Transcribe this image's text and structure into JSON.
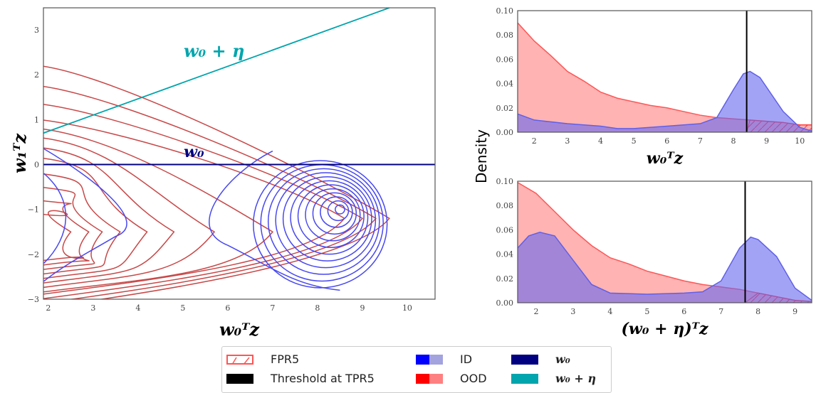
{
  "chart_data": [
    {
      "type": "contour",
      "xlabel": "w₀ᵀz",
      "ylabel": "w₁ᵀz",
      "xlim": [
        1.89,
        10.62
      ],
      "ylim": [
        -3,
        3.49
      ],
      "xticks": [
        "2",
        "3",
        "4",
        "5",
        "6",
        "7",
        "8",
        "9",
        "10"
      ],
      "yticks": [
        "−3",
        "−2",
        "−1",
        "0",
        "1",
        "2",
        "3"
      ],
      "lines": [
        {
          "name": "w₀",
          "slope": 0,
          "intercept": 0,
          "color": "#000080"
        },
        {
          "name": "w₀ + η",
          "points": [
            [
              1.89,
              0.7
            ],
            [
              9.6,
              3.49
            ]
          ],
          "color": "#00a5ad"
        }
      ],
      "id_center": [
        8.5,
        -1
      ],
      "grid": false
    },
    {
      "type": "area",
      "xlabel": "w₀ᵀz",
      "ylabel": "Density",
      "xlim": [
        1.5,
        10.36
      ],
      "ylim": [
        0,
        0.1
      ],
      "xticks": [
        "2",
        "3",
        "4",
        "5",
        "6",
        "7",
        "8",
        "9",
        "10"
      ],
      "yticks": [
        "0.00",
        "0.02",
        "0.04",
        "0.06",
        "0.08",
        "0.10"
      ],
      "threshold": 8.4,
      "series": [
        {
          "name": "OOD",
          "x": [
            1.5,
            2,
            2.5,
            3,
            3.5,
            4,
            4.5,
            5,
            5.5,
            6,
            6.5,
            7,
            7.5,
            8,
            8.5,
            9,
            9.5,
            10,
            10.36
          ],
          "y": [
            0.09,
            0.075,
            0.063,
            0.05,
            0.042,
            0.033,
            0.028,
            0.025,
            0.022,
            0.02,
            0.017,
            0.014,
            0.012,
            0.011,
            0.01,
            0.009,
            0.008,
            0.006,
            0.006
          ]
        },
        {
          "name": "ID",
          "x": [
            1.5,
            2,
            3,
            4,
            4.5,
            5,
            6,
            6.5,
            7,
            7.5,
            8,
            8.3,
            8.5,
            8.8,
            9,
            9.5,
            10,
            10.36
          ],
          "y": [
            0.015,
            0.01,
            0.007,
            0.005,
            0.003,
            0.003,
            0.005,
            0.006,
            0.007,
            0.012,
            0.035,
            0.048,
            0.05,
            0.045,
            0.037,
            0.017,
            0.004,
            0.001
          ]
        }
      ]
    },
    {
      "type": "area",
      "xlabel": "(w₀ + η)ᵀz",
      "ylabel": "Density",
      "xlim": [
        1.5,
        9.45
      ],
      "ylim": [
        0,
        0.1
      ],
      "xticks": [
        "2",
        "3",
        "4",
        "5",
        "6",
        "7",
        "8",
        "9"
      ],
      "yticks": [
        "0.00",
        "0.02",
        "0.04",
        "0.06",
        "0.08",
        "0.10"
      ],
      "threshold": 7.65,
      "series": [
        {
          "name": "OOD",
          "x": [
            1.5,
            2,
            2.5,
            3,
            3.5,
            4,
            4.5,
            5,
            5.5,
            6,
            6.5,
            7,
            7.5,
            8,
            8.5,
            9,
            9.45
          ],
          "y": [
            0.099,
            0.09,
            0.075,
            0.06,
            0.047,
            0.037,
            0.032,
            0.026,
            0.022,
            0.018,
            0.015,
            0.013,
            0.011,
            0.008,
            0.005,
            0.002,
            0.001
          ]
        },
        {
          "name": "ID",
          "x": [
            1.5,
            1.8,
            2.1,
            2.5,
            3,
            3.5,
            4,
            5,
            6,
            6.5,
            7,
            7.5,
            7.8,
            8,
            8.5,
            9,
            9.45
          ],
          "y": [
            0.045,
            0.055,
            0.058,
            0.055,
            0.035,
            0.015,
            0.008,
            0.007,
            0.008,
            0.009,
            0.018,
            0.045,
            0.054,
            0.052,
            0.038,
            0.012,
            0.002
          ]
        }
      ]
    }
  ],
  "legend": {
    "fpr": "FPR5",
    "threshold": "Threshold at TPR5",
    "id": "ID",
    "ood": "OOD",
    "w0": "w₀",
    "w0eta": "w₀ + η"
  },
  "colors": {
    "id": "#4444ff",
    "ood": "#cc4444",
    "w0": "#000080",
    "w0eta": "#00a5ad"
  }
}
